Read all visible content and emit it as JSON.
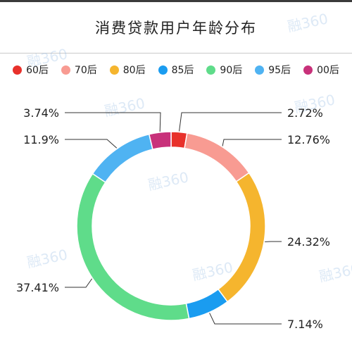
{
  "chart_data": {
    "type": "pie",
    "style": "donut",
    "title": "消费贷款用户年龄分布",
    "legend_position": "top",
    "slices": [
      {
        "name": "60后",
        "value": 2.72,
        "label": "2.72%",
        "color": "#e8312b"
      },
      {
        "name": "70后",
        "value": 12.76,
        "label": "12.76%",
        "color": "#f89b92"
      },
      {
        "name": "80后",
        "value": 24.32,
        "label": "24.32%",
        "color": "#f5b52e"
      },
      {
        "name": "85后",
        "value": 7.14,
        "label": "7.14%",
        "color": "#1a9cf0"
      },
      {
        "name": "90后",
        "value": 37.41,
        "label": "37.41%",
        "color": "#5fdc8a"
      },
      {
        "name": "95后",
        "value": 11.9,
        "label": "11.9%",
        "color": "#4fb3f2"
      },
      {
        "name": "00后",
        "value": 3.74,
        "label": "3.74%",
        "color": "#c8317a"
      }
    ]
  },
  "watermark_icon": "rong360-logo-watermark"
}
